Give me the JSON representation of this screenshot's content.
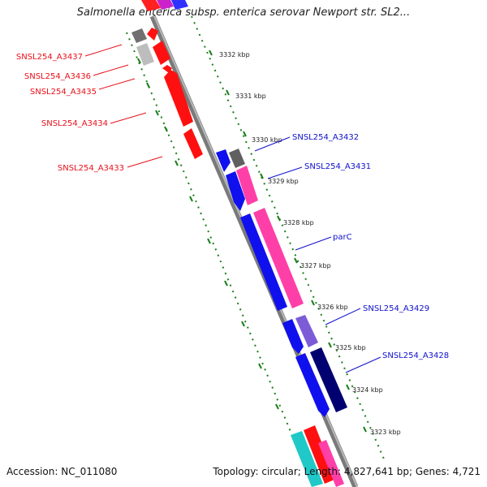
{
  "title": "Salmonella enterica subsp. enterica serovar Newport str. SL2...",
  "footer": {
    "accession": "Accession: NC_011080",
    "stats": "Topology: circular; Length: 4,827,641 bp; Genes: 4,721"
  },
  "colors": {
    "strand_label_left": "#e8101a",
    "strand_label_right": "#1010cc",
    "ruler_dots": "#1a7f1a",
    "backbone": "#8a8a8a"
  },
  "ruler_marks": [
    "3332 kbp",
    "3331 kbp",
    "3330 kbp",
    "3329 kbp",
    "3328 kbp",
    "3327 kbp",
    "3326 kbp",
    "3325 kbp",
    "3324 kbp",
    "3323 kbp"
  ],
  "left_labels": [
    "SNSL254_A3437",
    "SNSL254_A3436",
    "SNSL254_A3435",
    "SNSL254_A3434",
    "SNSL254_A3433"
  ],
  "right_labels": [
    "SNSL254_A3432",
    "SNSL254_A3431",
    "parC",
    "SNSL254_A3429",
    "SNSL254_A3428"
  ],
  "features": [
    {
      "name": "SNSL254_A3437",
      "strand": "reverse",
      "type": "CDS",
      "color": "#ff0000"
    },
    {
      "name": "SNSL254_A3436",
      "strand": "reverse",
      "type": "CDS",
      "color": "#ff0000"
    },
    {
      "name": "SNSL254_A3435",
      "strand": "reverse",
      "type": "CDS",
      "color": "#ff0000"
    },
    {
      "name": "SNSL254_A3434",
      "strand": "reverse",
      "type": "CDS",
      "color": "#ff0000"
    },
    {
      "name": "SNSL254_A3433",
      "strand": "reverse",
      "type": "CDS",
      "color": "#ff0000"
    },
    {
      "name": "SNSL254_A3432",
      "strand": "forward",
      "type": "CDS",
      "color": "#1010dd"
    },
    {
      "name": "SNSL254_A3431",
      "strand": "forward",
      "type": "CDS",
      "color": "#1010dd"
    },
    {
      "name": "parC",
      "strand": "forward",
      "type": "CDS",
      "color": "#1010dd"
    },
    {
      "name": "SNSL254_A3429",
      "strand": "forward",
      "type": "CDS",
      "color": "#1010dd"
    },
    {
      "name": "SNSL254_A3428",
      "strand": "forward",
      "type": "CDS",
      "color": "#1010dd"
    }
  ]
}
